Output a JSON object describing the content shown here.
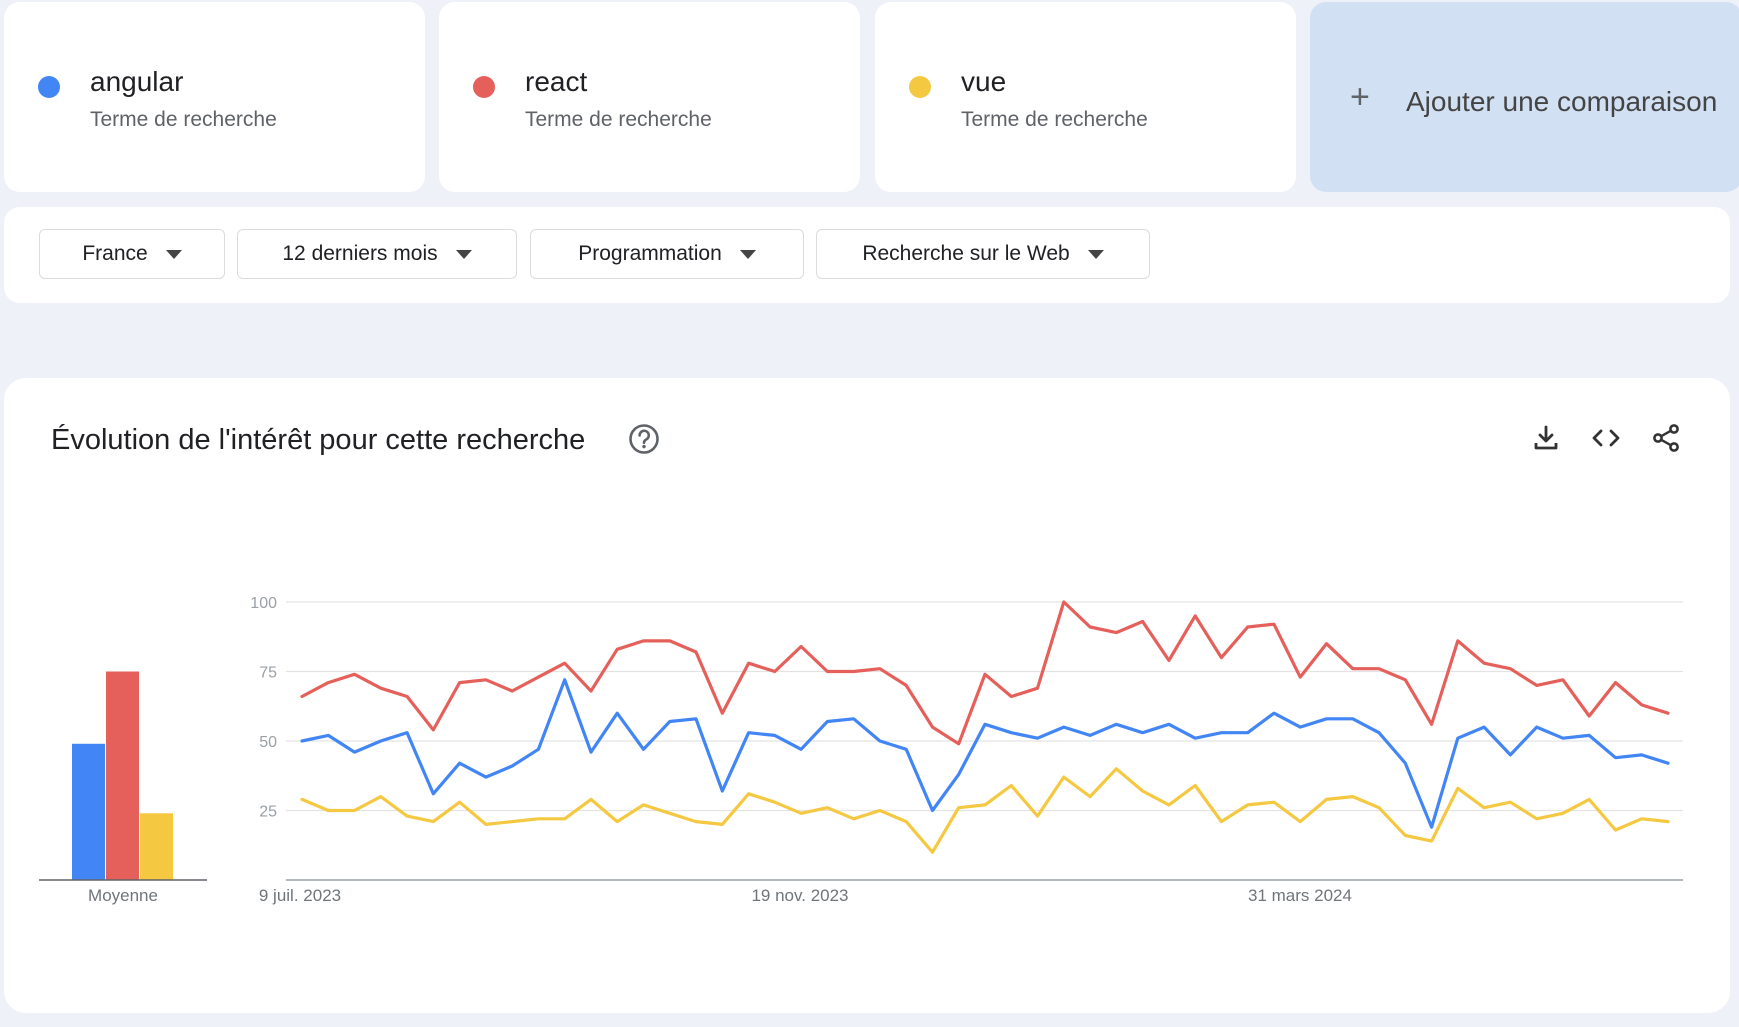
{
  "terms": [
    {
      "name": "angular",
      "subtitle": "Terme de recherche",
      "color": "#4285f4"
    },
    {
      "name": "react",
      "subtitle": "Terme de recherche",
      "color": "#e5605a"
    },
    {
      "name": "vue",
      "subtitle": "Terme de recherche",
      "color": "#f5c842"
    }
  ],
  "add_comparison": {
    "label": "Ajouter une comparaison",
    "icon": "plus-icon"
  },
  "filters": [
    {
      "label": "France"
    },
    {
      "label": "12 derniers mois"
    },
    {
      "label": "Programmation"
    },
    {
      "label": "Recherche sur le Web"
    }
  ],
  "panel": {
    "title": "Évolution de l'intérêt pour cette recherche",
    "icons": [
      "help-icon",
      "download-icon",
      "embed-code-icon",
      "share-icon"
    ]
  },
  "chart_data": {
    "type": "line",
    "ylim": [
      0,
      100
    ],
    "yticks": [
      25,
      50,
      75,
      100
    ],
    "xtick_labels": [
      "9 juil. 2023",
      "19 nov. 2023",
      "31 mars 2024"
    ],
    "average_label": "Moyenne",
    "averages": [
      {
        "name": "angular",
        "value": 49
      },
      {
        "name": "react",
        "value": 75
      },
      {
        "name": "vue",
        "value": 24
      }
    ],
    "grid": true,
    "series": [
      {
        "name": "angular",
        "color": "#4285f4",
        "values": [
          50,
          52,
          46,
          50,
          53,
          31,
          42,
          37,
          41,
          47,
          72,
          46,
          60,
          47,
          57,
          58,
          32,
          53,
          52,
          47,
          57,
          58,
          50,
          47,
          25,
          38,
          56,
          53,
          51,
          55,
          52,
          56,
          53,
          56,
          51,
          53,
          53,
          60,
          55,
          58,
          58,
          53,
          42,
          19,
          51,
          55,
          45,
          55,
          51,
          52,
          44,
          45,
          42
        ]
      },
      {
        "name": "react",
        "color": "#e5605a",
        "values": [
          66,
          71,
          74,
          69,
          66,
          54,
          71,
          72,
          68,
          73,
          78,
          68,
          83,
          86,
          86,
          82,
          60,
          78,
          75,
          84,
          75,
          75,
          76,
          70,
          55,
          49,
          74,
          66,
          69,
          100,
          91,
          89,
          93,
          79,
          95,
          80,
          91,
          92,
          73,
          85,
          76,
          76,
          72,
          56,
          86,
          78,
          76,
          70,
          72,
          59,
          71,
          63,
          60
        ]
      },
      {
        "name": "vue",
        "color": "#f5c842",
        "values": [
          29,
          25,
          25,
          30,
          23,
          21,
          28,
          20,
          21,
          22,
          22,
          29,
          21,
          27,
          24,
          21,
          20,
          31,
          28,
          24,
          26,
          22,
          25,
          21,
          10,
          26,
          27,
          34,
          23,
          37,
          30,
          40,
          32,
          27,
          34,
          21,
          27,
          28,
          21,
          29,
          30,
          26,
          16,
          14,
          33,
          26,
          28,
          22,
          24,
          29,
          18,
          22,
          21
        ]
      }
    ]
  }
}
